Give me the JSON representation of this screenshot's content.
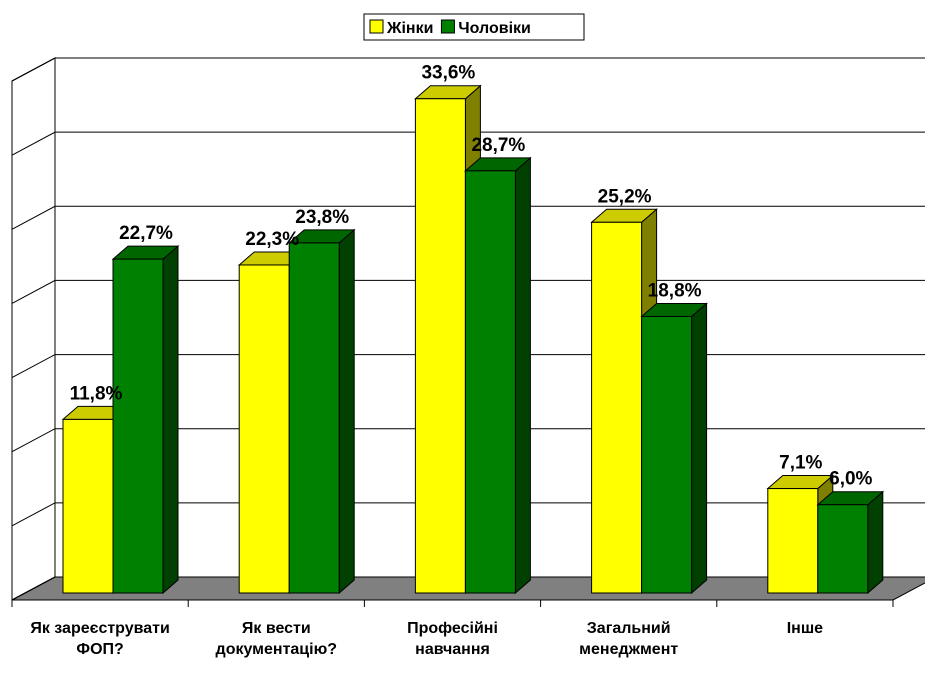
{
  "chart_data": {
    "type": "bar3d",
    "categories": [
      "Як зареєструвати ФОП?",
      "Як вести документацію?",
      "Професійні навчання",
      "Загальний менеджмент",
      "Інше"
    ],
    "series": [
      {
        "name": "Жінки",
        "color": "#ffff00",
        "values": [
          11.8,
          22.3,
          33.6,
          25.2,
          7.1
        ],
        "value_labels": [
          "11,8%",
          "22,3%",
          "33,6%",
          "25,2%",
          "7,1%"
        ]
      },
      {
        "name": "Чоловіки",
        "color": "#008000",
        "values": [
          22.7,
          23.8,
          28.7,
          18.8,
          6.0
        ],
        "value_labels": [
          "22,7%",
          "23,8%",
          "28,7%",
          "18,8%",
          "6,0%"
        ]
      }
    ],
    "ylim": [
      0,
      35
    ],
    "yticks": [
      0,
      5,
      10,
      15,
      20,
      25,
      30,
      35
    ],
    "grid": true,
    "legend": "top"
  }
}
